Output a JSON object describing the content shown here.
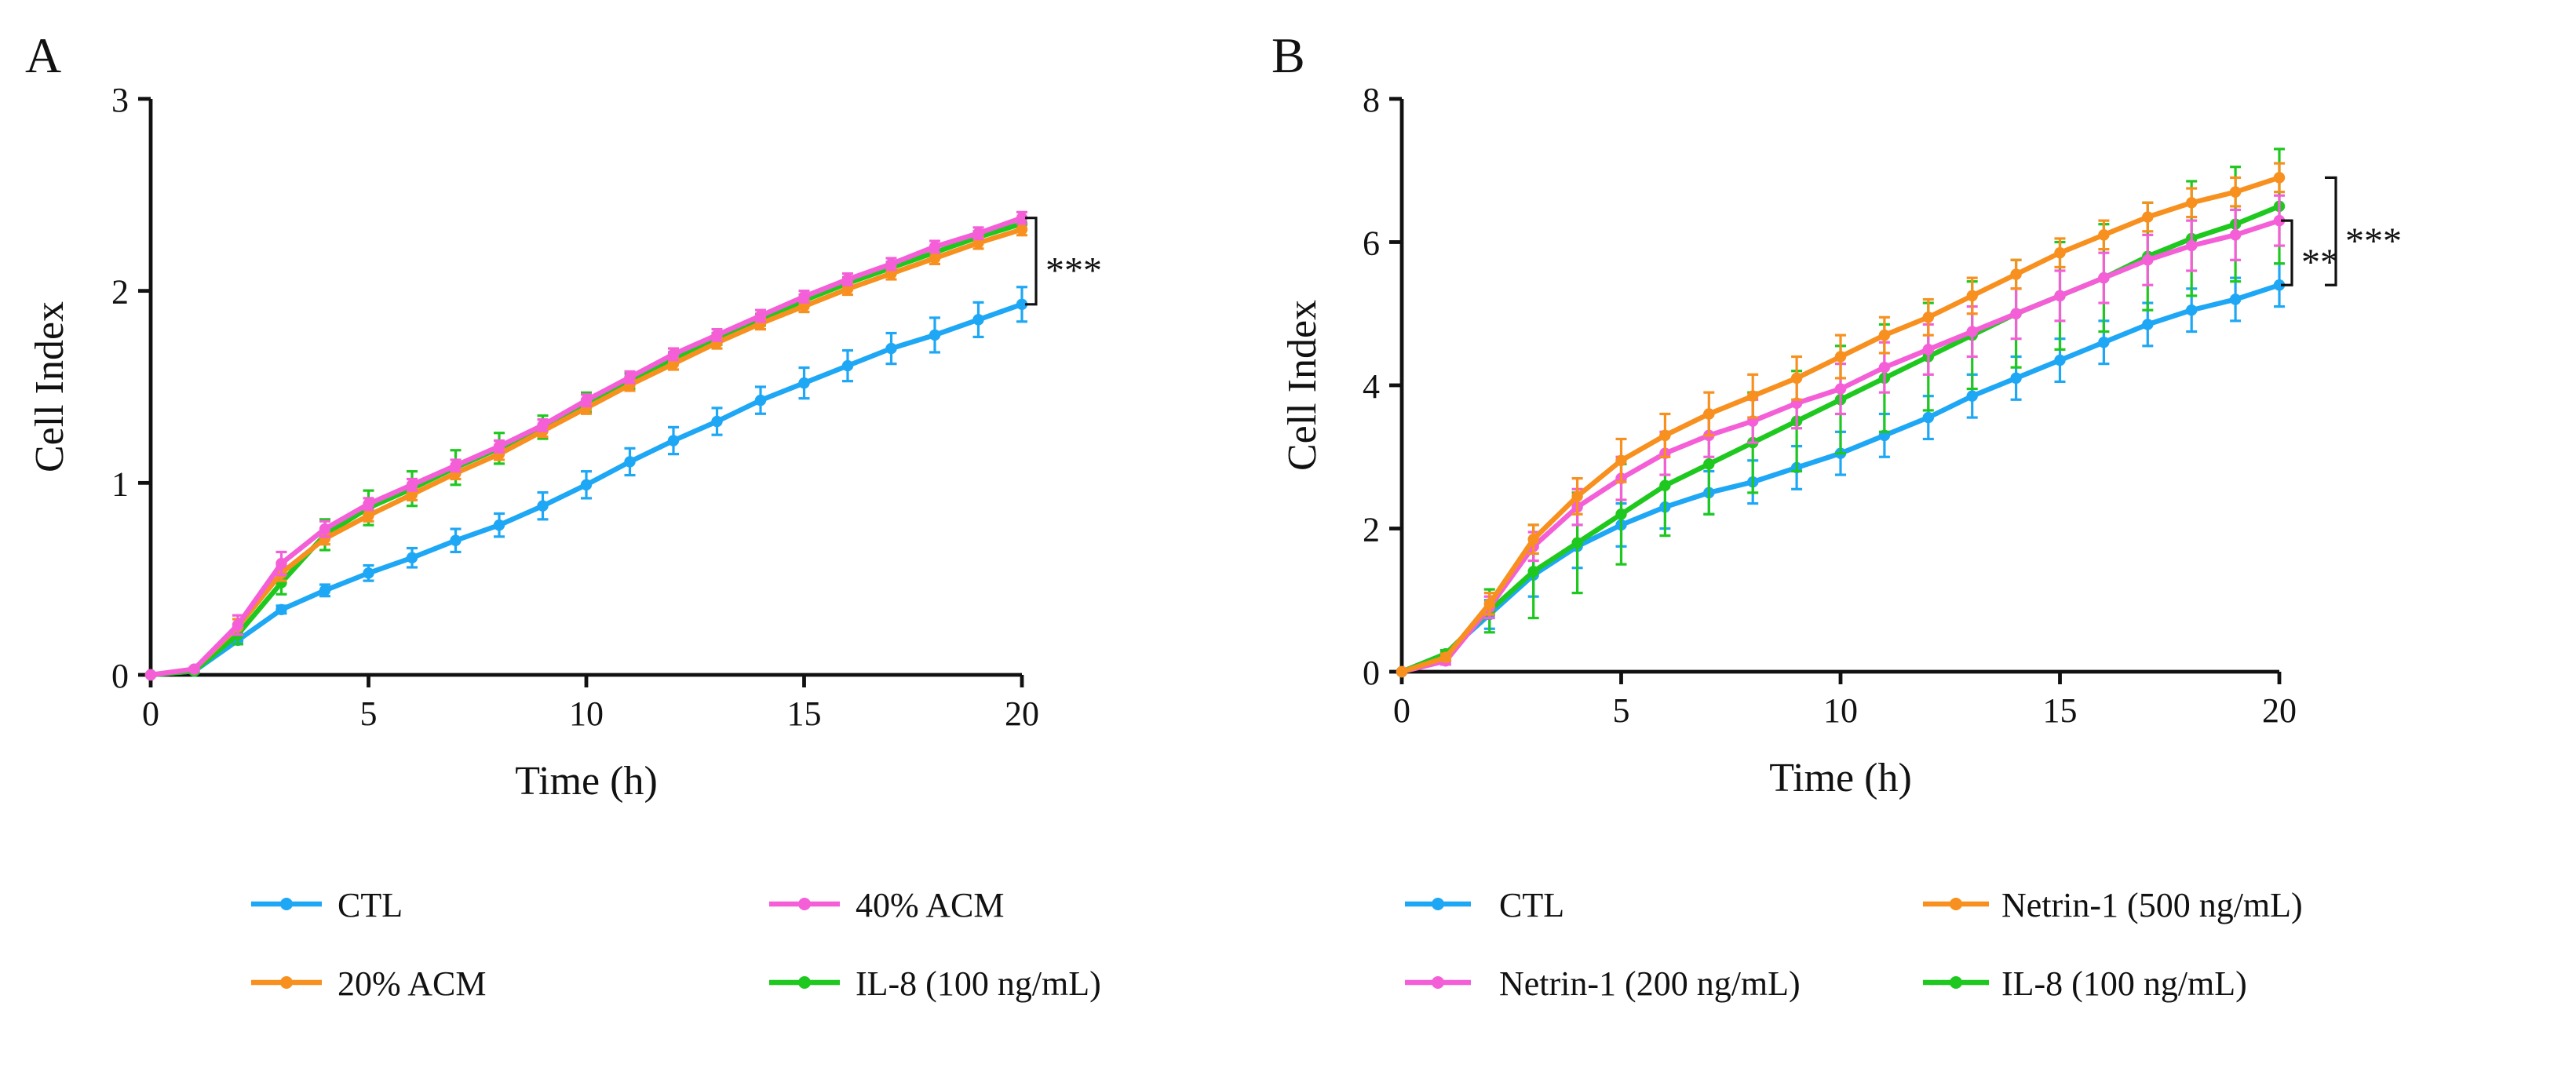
{
  "colors": {
    "ctl": "#1ea7f5",
    "orange": "#f7901e",
    "pink": "#f45fd8",
    "green": "#1fc81f",
    "axis": "#111111"
  },
  "chart_data": [
    {
      "panel": "A",
      "type": "line",
      "xlabel": "Time (h)",
      "ylabel": "Cell Index",
      "xlim": [
        0,
        20
      ],
      "ylim": [
        0,
        3
      ],
      "xticks": [
        "0",
        "5",
        "10",
        "15",
        "20"
      ],
      "yticks": [
        "0",
        "1",
        "2",
        "3"
      ],
      "x": [
        0,
        1,
        2,
        3,
        4,
        5,
        6,
        7,
        8,
        9,
        10,
        11,
        12,
        13,
        14,
        15,
        16,
        17,
        18,
        19,
        20
      ],
      "series": [
        {
          "name": "CTL",
          "color": "#1ea7f5",
          "values": [
            0,
            0.02,
            0.18,
            0.34,
            0.44,
            0.53,
            0.61,
            0.7,
            0.78,
            0.88,
            0.99,
            1.11,
            1.22,
            1.32,
            1.43,
            1.52,
            1.61,
            1.7,
            1.77,
            1.85,
            1.93
          ],
          "err": [
            0,
            0.01,
            0.02,
            0.02,
            0.03,
            0.04,
            0.05,
            0.06,
            0.06,
            0.07,
            0.07,
            0.07,
            0.07,
            0.07,
            0.07,
            0.08,
            0.08,
            0.08,
            0.09,
            0.09,
            0.09
          ]
        },
        {
          "name": "IL-8 (100 ng/mL)",
          "color": "#1fc81f",
          "values": [
            0,
            0.02,
            0.21,
            0.48,
            0.73,
            0.87,
            0.97,
            1.08,
            1.18,
            1.29,
            1.42,
            1.53,
            1.65,
            1.75,
            1.85,
            1.95,
            2.04,
            2.12,
            2.2,
            2.28,
            2.35
          ],
          "err": [
            0,
            0.01,
            0.05,
            0.06,
            0.08,
            0.09,
            0.09,
            0.09,
            0.08,
            0.06,
            0.05,
            0.04,
            0.03,
            0.03,
            0.03,
            0.03,
            0.03,
            0.03,
            0.03,
            0.03,
            0.03
          ]
        },
        {
          "name": "20% ACM",
          "color": "#f7901e",
          "values": [
            0,
            0.03,
            0.25,
            0.53,
            0.71,
            0.83,
            0.94,
            1.05,
            1.15,
            1.27,
            1.39,
            1.51,
            1.62,
            1.73,
            1.83,
            1.92,
            2.01,
            2.09,
            2.17,
            2.25,
            2.32
          ],
          "err": [
            0,
            0.01,
            0.04,
            0.04,
            0.03,
            0.03,
            0.03,
            0.03,
            0.03,
            0.03,
            0.03,
            0.03,
            0.03,
            0.03,
            0.03,
            0.03,
            0.03,
            0.03,
            0.03,
            0.03,
            0.03
          ]
        },
        {
          "name": "40% ACM",
          "color": "#f45fd8",
          "values": [
            0,
            0.03,
            0.26,
            0.58,
            0.76,
            0.89,
            0.99,
            1.09,
            1.19,
            1.3,
            1.43,
            1.55,
            1.67,
            1.77,
            1.87,
            1.97,
            2.06,
            2.14,
            2.23,
            2.3,
            2.38
          ],
          "err": [
            0,
            0.01,
            0.05,
            0.06,
            0.04,
            0.03,
            0.03,
            0.03,
            0.03,
            0.03,
            0.03,
            0.03,
            0.03,
            0.03,
            0.03,
            0.03,
            0.03,
            0.03,
            0.03,
            0.03,
            0.03
          ]
        }
      ],
      "legend": [
        {
          "label": "CTL",
          "series": 0
        },
        {
          "label": "40% ACM",
          "series": 3
        },
        {
          "label": "20% ACM",
          "series": 2
        },
        {
          "label": "IL-8 (100 ng/mL)",
          "series": 1
        }
      ],
      "annotations": [
        {
          "text": "***",
          "bracket": [
            1.93,
            2.38
          ]
        }
      ]
    },
    {
      "panel": "B",
      "type": "line",
      "xlabel": "Time (h)",
      "ylabel": "Cell Index",
      "xlim": [
        0,
        20
      ],
      "ylim": [
        0,
        8
      ],
      "xticks": [
        "0",
        "5",
        "10",
        "15",
        "20"
      ],
      "yticks": [
        "0",
        "2",
        "4",
        "6",
        "8"
      ],
      "x": [
        0,
        1,
        2,
        3,
        4,
        5,
        6,
        7,
        8,
        9,
        10,
        11,
        12,
        13,
        14,
        15,
        16,
        17,
        18,
        19,
        20
      ],
      "series": [
        {
          "name": "CTL",
          "color": "#1ea7f5",
          "values": [
            0,
            0.25,
            0.8,
            1.35,
            1.75,
            2.05,
            2.3,
            2.5,
            2.65,
            2.85,
            3.05,
            3.3,
            3.55,
            3.85,
            4.1,
            4.35,
            4.6,
            4.85,
            5.05,
            5.2,
            5.4
          ],
          "err": [
            0,
            0.05,
            0.2,
            0.3,
            0.3,
            0.3,
            0.3,
            0.3,
            0.3,
            0.3,
            0.3,
            0.3,
            0.3,
            0.3,
            0.3,
            0.3,
            0.3,
            0.3,
            0.3,
            0.3,
            0.3
          ]
        },
        {
          "name": "IL-8 (100 ng/mL)",
          "color": "#1fc81f",
          "values": [
            0,
            0.25,
            0.85,
            1.4,
            1.8,
            2.2,
            2.6,
            2.9,
            3.2,
            3.5,
            3.8,
            4.1,
            4.4,
            4.7,
            5.0,
            5.25,
            5.5,
            5.8,
            6.05,
            6.25,
            6.5
          ],
          "err": [
            0,
            0.05,
            0.3,
            0.65,
            0.7,
            0.7,
            0.7,
            0.7,
            0.7,
            0.7,
            0.75,
            0.75,
            0.75,
            0.75,
            0.75,
            0.75,
            0.75,
            0.75,
            0.8,
            0.8,
            0.8
          ]
        },
        {
          "name": "Netrin-1 (200 ng/mL)",
          "color": "#f45fd8",
          "values": [
            0,
            0.15,
            0.9,
            1.75,
            2.3,
            2.7,
            3.05,
            3.3,
            3.5,
            3.75,
            3.95,
            4.25,
            4.5,
            4.75,
            5.0,
            5.25,
            5.5,
            5.75,
            5.95,
            6.1,
            6.3
          ],
          "err": [
            0,
            0.05,
            0.15,
            0.2,
            0.25,
            0.3,
            0.3,
            0.3,
            0.3,
            0.35,
            0.35,
            0.35,
            0.35,
            0.35,
            0.35,
            0.35,
            0.35,
            0.35,
            0.35,
            0.35,
            0.35
          ]
        },
        {
          "name": "Netrin-1 (500 ng/mL)",
          "color": "#f7901e",
          "values": [
            0,
            0.2,
            0.95,
            1.85,
            2.45,
            2.95,
            3.3,
            3.6,
            3.85,
            4.1,
            4.4,
            4.7,
            4.95,
            5.25,
            5.55,
            5.85,
            6.1,
            6.35,
            6.55,
            6.7,
            6.9
          ],
          "err": [
            0,
            0.05,
            0.15,
            0.2,
            0.25,
            0.3,
            0.3,
            0.3,
            0.3,
            0.3,
            0.3,
            0.25,
            0.25,
            0.25,
            0.2,
            0.2,
            0.2,
            0.2,
            0.2,
            0.2,
            0.2
          ]
        }
      ],
      "legend": [
        {
          "label": "CTL",
          "series": 0
        },
        {
          "label": "Netrin-1 (500 ng/mL)",
          "series": 3
        },
        {
          "label": "Netrin-1 (200 ng/mL)",
          "series": 2
        },
        {
          "label": "IL-8 (100 ng/mL)",
          "series": 1
        }
      ],
      "annotations": [
        {
          "text": "**",
          "bracket": [
            5.4,
            6.3
          ]
        },
        {
          "text": "***",
          "bracket": [
            5.4,
            6.9
          ]
        }
      ]
    }
  ]
}
